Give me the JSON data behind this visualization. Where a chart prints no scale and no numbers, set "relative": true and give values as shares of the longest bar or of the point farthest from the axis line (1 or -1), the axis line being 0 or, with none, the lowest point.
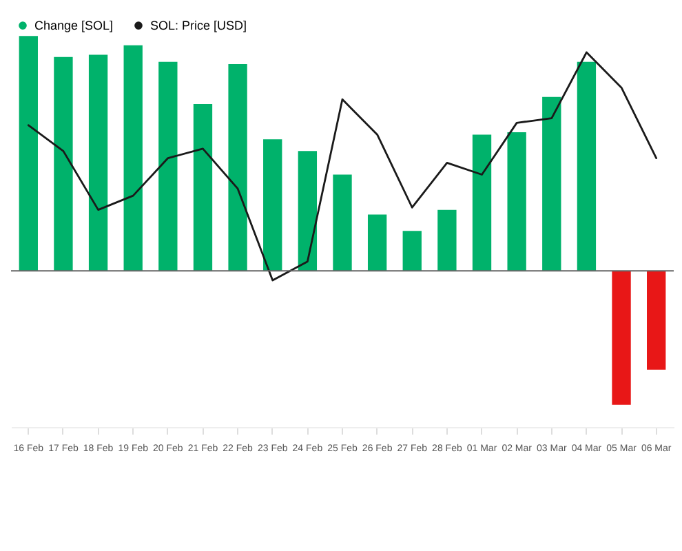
{
  "chart_data": {
    "type": "bar",
    "relative": true,
    "legend": "top left",
    "categories": [
      "16 Feb",
      "17 Feb",
      "18 Feb",
      "19 Feb",
      "20 Feb",
      "21 Feb",
      "22 Feb",
      "23 Feb",
      "24 Feb",
      "25 Feb",
      "26 Feb",
      "27 Feb",
      "28 Feb",
      "01 Mar",
      "02 Mar",
      "03 Mar",
      "04 Mar",
      "05 Mar",
      "06 Mar"
    ],
    "series": [
      {
        "name": "Change [SOL]",
        "color": "#00b26b",
        "colors": [
          "#00b26b",
          "#00b26b",
          "#00b26b",
          "#00b26b",
          "#00b26b",
          "#00b26b",
          "#00b26b",
          "#00b26b",
          "#00b26b",
          "#00b26b",
          "#00b26b",
          "#00b26b",
          "#00b26b",
          "#00b26b",
          "#00b26b",
          "#00b26b",
          "#00b26b",
          "#e81717",
          "#e81717"
        ],
        "values": [
          1,
          0.91,
          0.92,
          0.96,
          0.89,
          0.71,
          0.88,
          0.56,
          0.51,
          0.41,
          0.24,
          0.17,
          0.26,
          0.58,
          0.59,
          0.74,
          0.89,
          -0.57,
          -0.42
        ]
      },
      {
        "name": "SOL: Price [USD]",
        "type": "line",
        "color": "#1a1a1a",
        "values": [
          0.62,
          0.51,
          0.26,
          0.32,
          0.48,
          0.52,
          0.35,
          -0.04,
          0.04,
          0.73,
          0.58,
          0.27,
          0.46,
          0.41,
          0.63,
          0.65,
          0.93,
          0.78,
          0.48
        ]
      }
    ]
  }
}
